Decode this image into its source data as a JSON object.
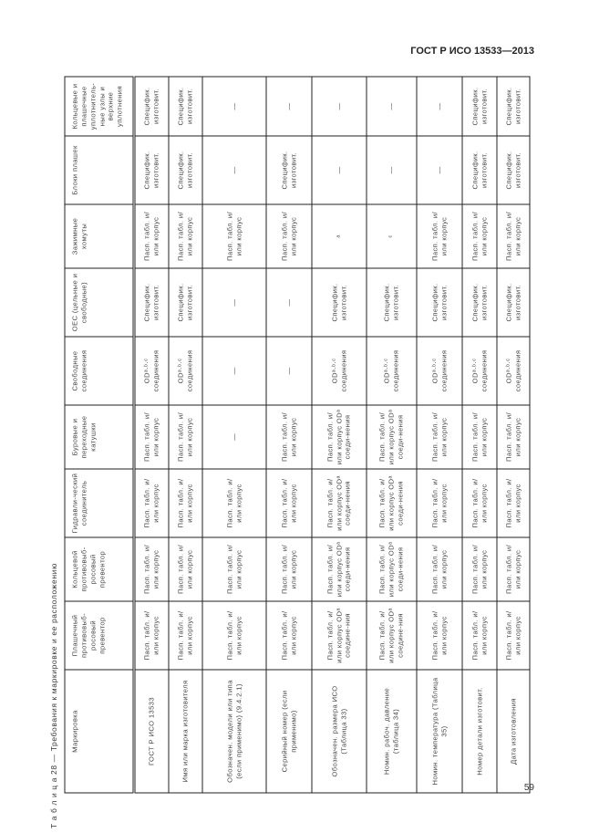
{
  "header": {
    "standard": "ГОСТ Р ИСО 13533—2013"
  },
  "page_number": "59",
  "caption": "Т а б л и ц а  28 — Требования к маркировке и ее расположению",
  "table": {
    "columns": [
      "Маркировка",
      "Плашечный противовыб-росовый превентор",
      "Кольцевой противовыб-росовый превентор",
      "Гидравли-ческий соединитель",
      "Буровые и переходные катушки",
      "Свободные соединения",
      "OEC (цельные и свободные)",
      "Зажимные хомуты",
      "Блоки плашек",
      "Кольцевые и плашечные уплотнитель-ные узлы и верхние уплотнения"
    ],
    "rows": [
      [
        "ГОСТ Р ИСО 13533",
        "Пасп. табл. и/или корпус",
        "Пасп. табл. и/или корпус",
        "Пасп. табл. и/или корпус",
        "Пасп. табл. и/или корпус",
        "ODᵃ·ᵇ·ᶜ соединения",
        "Специфик. изготовит.",
        "Пасп. табл. и/или корпус",
        "Специфик. изготовит.",
        "Специфик. изготовит."
      ],
      [
        "Имя или марка изготовителя",
        "Пасп. табл. и/или корпус",
        "Пасп. табл. и/или корпус",
        "Пасп. табл. и/или корпус",
        "Пасп. табл. и/или корпус",
        "ODᵃ·ᵇ·ᶜ соединения",
        "Специфик. изготовит.",
        "Пасп. табл. и/или корпус",
        "Специфик. изготовит.",
        "Специфик. изготовит."
      ],
      [
        "Обозначен. модели или типа (если применимо) (9.4.2.1)",
        "Пасп. табл. и/или корпус",
        "Пасп. табл. и/или корпус",
        "Пасп. табл. и/или корпус",
        "—",
        "—",
        "—",
        "Пасп. табл. и/или корпус",
        "—",
        "—"
      ],
      [
        "Серийный номер (если применимо)",
        "Пасп. табл. и/или корпус",
        "Пасп. табл. и/или корпус",
        "Пасп. табл. и/или корпус",
        "Пасп. табл. и/или корпус",
        "—",
        "—",
        "Пасп. табл. и/или корпус",
        "Специфик. изготовит.",
        "—"
      ],
      [
        "Обозначен. размера ИСО (Таблица 33)",
        "Пасп. табл. и/или корпус ODᵃ соедине-ния",
        "Пасп. табл. и/или корпус ODᵃ соеди-нения",
        "Пасп. табл. и/или корпус ODᵃ соеди-нения",
        "Пасп. табл. и/или корпус ODᵃ соеди-нения",
        "ODᵃ·ᵇ·ᶜ соединения",
        "Специфик. изготовит.",
        "ᵃ",
        "—",
        "—"
      ],
      [
        "Номин. рабоч. давление (таблица 34)",
        "Пасп. табл. и/или корпус ODᵃ соедине-ния",
        "Пасп. табл. и/или корпус ODᵃ соеди-нения",
        "Пасп. табл. и/или корпус ODᵃ соеди-нения",
        "Пасп. табл. и/или корпус ODᵃ соеди-нения",
        "ODᵃ·ᵇ·ᶜ соединения",
        "Специфик. изготовит.",
        "ᶜ",
        "—",
        "—"
      ],
      [
        "Номин. температура (Таблица 35)",
        "Пасп. табл. и/или корпус",
        "Пасп. табл. и/или корпус",
        "Пасп. табл. и/или корпус",
        "Пасп. табл. и/или корпус",
        "ODᵃ·ᵇ·ᶜ соединения",
        "Специфик. изготовит.",
        "Пасп. табл. и/или корпус",
        "—",
        "—"
      ],
      [
        "Номер детали изготовит.",
        "Пасп. табл. и/или корпус",
        "Пасп. табл. и/или корпус",
        "Пасп. табл. и/или корпус",
        "Пасп. табл. и/или корпус",
        "ODᵃ·ᵇ·ᶜ соединения",
        "Специфик. изготовит.",
        "Пасп. табл. и/или корпус",
        "Специфик. изготовит.",
        "Специфик. изготовит."
      ],
      [
        "Дата изготовления",
        "Пасп. табл. и/или корпус",
        "Пасп. табл. и/или корпус",
        "Пасп. табл. и/или корпус",
        "Пасп. табл. и/или корпус",
        "ODᵃ·ᵇ·ᶜ соединения",
        "Специфик. изготовит.",
        "Пасп. табл. и/или корпус",
        "Специфик. изготовит.",
        "Специфик. изготовит."
      ]
    ]
  }
}
